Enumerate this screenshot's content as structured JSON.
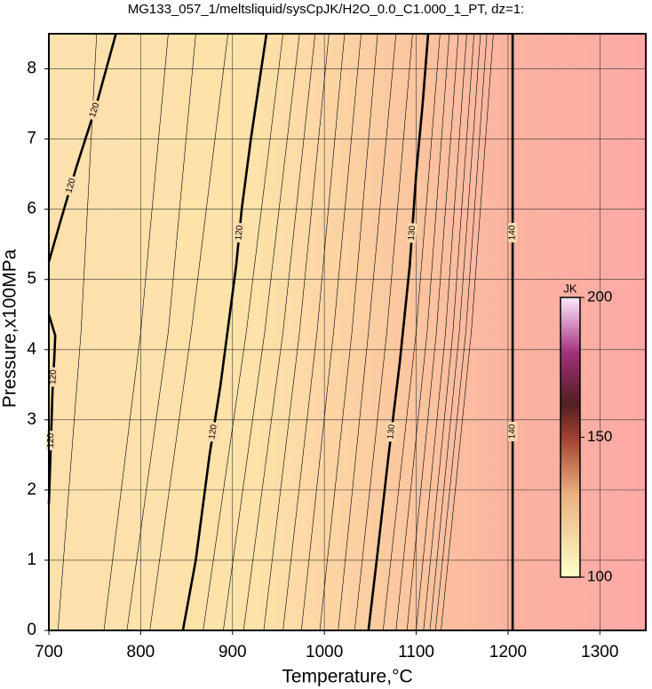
{
  "chart_data": {
    "type": "contour",
    "title": "MG133_057_1/meltsliquid/sysCpJK/H2O_0.0_C1.000_1_PT, dz=1:",
    "x_label": "Temperature,°C",
    "y_label": "Pressure,x100MPa",
    "xlim": [
      700,
      1350
    ],
    "ylim": [
      0,
      8.5
    ],
    "xticks": [
      700,
      800,
      900,
      1000,
      1100,
      1200,
      1300
    ],
    "yticks": [
      0,
      1,
      2,
      3,
      4,
      5,
      6,
      7,
      8
    ],
    "grid": true,
    "major_contours": [
      {
        "x": [
          700,
          712,
          730,
          752,
          773
        ],
        "y": [
          5.25,
          5.8,
          6.6,
          7.5,
          8.5
        ],
        "labels": [
          120,
          120
        ]
      },
      {
        "x": [
          700,
          702,
          704,
          706,
          707,
          700
        ],
        "y": [
          1.8,
          2.6,
          3.4,
          3.9,
          4.2,
          4.5
        ],
        "labels": [
          120,
          120
        ]
      },
      {
        "x": [
          846,
          860,
          875,
          887,
          898,
          904,
          910,
          920,
          937
        ],
        "y": [
          0,
          1,
          2.5,
          3.5,
          4.6,
          5.2,
          6,
          7,
          8.5
        ],
        "labels": [
          120,
          120
        ]
      },
      {
        "x": [
          1048,
          1057,
          1070,
          1082,
          1093,
          1100,
          1107,
          1113
        ],
        "y": [
          0,
          1,
          2.5,
          3.8,
          5.2,
          6.5,
          7.5,
          8.5
        ],
        "labels": [
          130,
          130
        ]
      },
      {
        "x": [
          1205,
          1205
        ],
        "y": [
          0,
          8.5
        ],
        "labels": [
          140,
          140
        ]
      }
    ],
    "minor_contours": [
      {
        "x": [
          710,
          735,
          752
        ],
        "y": [
          0,
          4.25,
          8.5
        ]
      },
      {
        "x": [
          760,
          800,
          830
        ],
        "y": [
          0,
          4.25,
          8.5
        ]
      },
      {
        "x": [
          785,
          830,
          860
        ],
        "y": [
          0,
          4.25,
          8.5
        ]
      },
      {
        "x": [
          810,
          855,
          895
        ],
        "y": [
          0,
          4.25,
          8.5
        ]
      },
      {
        "x": [
          868,
          915,
          955
        ],
        "y": [
          0,
          4.25,
          8.5
        ]
      },
      {
        "x": [
          890,
          935,
          973
        ],
        "y": [
          0,
          4.25,
          8.5
        ]
      },
      {
        "x": [
          912,
          955,
          990
        ],
        "y": [
          0,
          4.25,
          8.5
        ]
      },
      {
        "x": [
          934,
          973,
          1005
        ],
        "y": [
          0,
          4.25,
          8.5
        ]
      },
      {
        "x": [
          955,
          992,
          1022
        ],
        "y": [
          0,
          4.25,
          8.5
        ]
      },
      {
        "x": [
          975,
          1010,
          1040
        ],
        "y": [
          0,
          4.25,
          8.5
        ]
      },
      {
        "x": [
          995,
          1030,
          1058
        ],
        "y": [
          0,
          4.25,
          8.5
        ]
      },
      {
        "x": [
          1015,
          1048,
          1078
        ],
        "y": [
          0,
          4.25,
          8.5
        ]
      },
      {
        "x": [
          1033,
          1068,
          1096
        ],
        "y": [
          0,
          4.25,
          8.5
        ]
      },
      {
        "x": [
          1064,
          1100,
          1126
        ],
        "y": [
          0,
          4.25,
          8.5
        ]
      },
      {
        "x": [
          1078,
          1112,
          1136
        ],
        "y": [
          0,
          4.25,
          8.5
        ]
      },
      {
        "x": [
          1090,
          1122,
          1146
        ],
        "y": [
          0,
          4.25,
          8.5
        ]
      },
      {
        "x": [
          1100,
          1132,
          1155
        ],
        "y": [
          0,
          4.25,
          8.5
        ]
      },
      {
        "x": [
          1108,
          1140,
          1163
        ],
        "y": [
          0,
          4.25,
          8.5
        ]
      },
      {
        "x": [
          1115,
          1147,
          1170
        ],
        "y": [
          0,
          4.25,
          8.5
        ]
      },
      {
        "x": [
          1121,
          1154,
          1177
        ],
        "y": [
          0,
          4.25,
          8.5
        ]
      },
      {
        "x": [
          1127,
          1160,
          1184
        ],
        "y": [
          0,
          4.25,
          8.5
        ]
      }
    ],
    "colorbar": {
      "label": "JK",
      "lim": [
        100,
        200
      ],
      "ticks": [
        100,
        150,
        200
      ]
    }
  }
}
